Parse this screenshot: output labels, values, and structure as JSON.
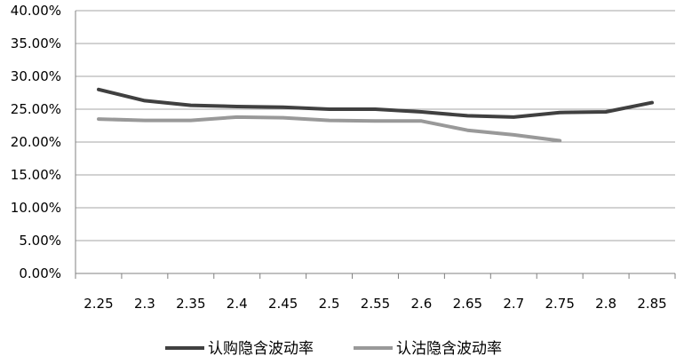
{
  "chart_data": {
    "type": "line",
    "title": "",
    "xlabel": "",
    "ylabel": "",
    "categories": [
      "2.25",
      "2.3",
      "2.35",
      "2.4",
      "2.45",
      "2.5",
      "2.55",
      "2.6",
      "2.65",
      "2.7",
      "2.75",
      "2.8",
      "2.85"
    ],
    "ylim": [
      0,
      0.4
    ],
    "y_ticks": [
      "0.00%",
      "5.00%",
      "10.00%",
      "15.00%",
      "20.00%",
      "25.00%",
      "30.00%",
      "35.00%",
      "40.00%"
    ],
    "grid": "horizontal",
    "legend_position": "bottom",
    "series": [
      {
        "name": "认购隐含波动率",
        "color": "#404040",
        "values": [
          0.28,
          0.263,
          0.256,
          0.254,
          0.253,
          0.25,
          0.25,
          0.246,
          0.24,
          0.238,
          0.245,
          0.246,
          0.26
        ]
      },
      {
        "name": "认沽隐含波动率",
        "color": "#999999",
        "values": [
          0.235,
          0.233,
          0.233,
          0.238,
          0.237,
          0.233,
          0.232,
          0.232,
          0.218,
          0.211,
          0.202,
          null,
          null
        ]
      }
    ]
  }
}
